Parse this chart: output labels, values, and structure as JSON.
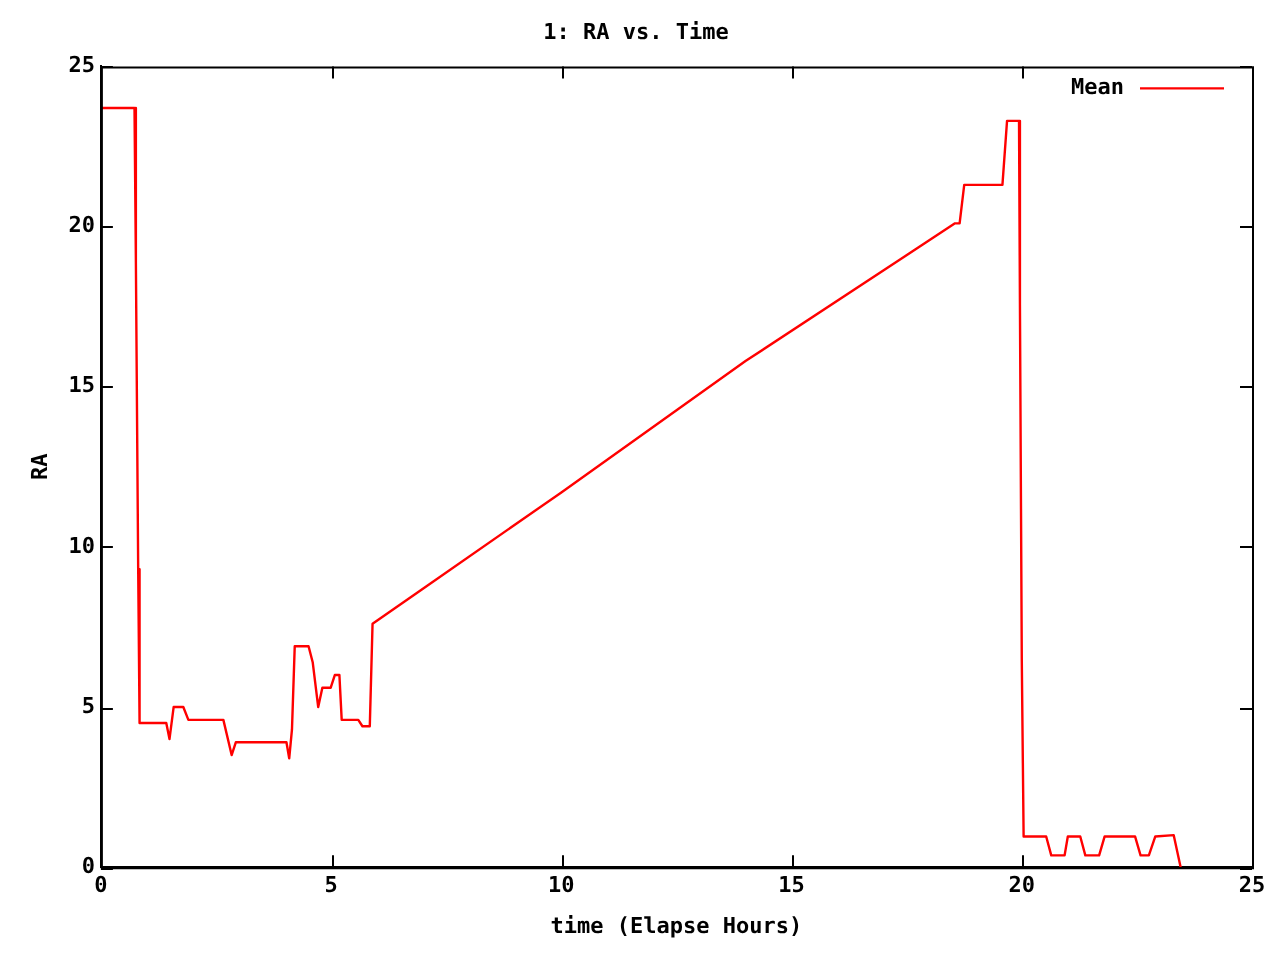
{
  "chart_data": {
    "type": "line",
    "title": "1: RA vs. Time",
    "xlabel": "time (Elapse Hours)",
    "ylabel": "RA",
    "xlim": [
      0,
      25
    ],
    "xticks": [
      0,
      5,
      10,
      15,
      20,
      25
    ],
    "ylim": [
      0,
      25
    ],
    "yticks": [
      0,
      5,
      10,
      15,
      20,
      25
    ],
    "grid": false,
    "legend": "top right",
    "marker": "none",
    "line_style": "solid",
    "series": [
      {
        "name": "Mean",
        "color": "#ff0000",
        "x": [
          0,
          0.73,
          0.76,
          0.81,
          0.84,
          1.42,
          1.49,
          1.58,
          1.79,
          1.9,
          2.66,
          2.84,
          2.93,
          4.03,
          4.09,
          4.15,
          4.21,
          4.51,
          4.6,
          4.72,
          4.81,
          4.99,
          5.08,
          5.18,
          5.23,
          5.59,
          5.68,
          5.84,
          5.9,
          6.9,
          10,
          14,
          18.55,
          18.65,
          18.75,
          19.58,
          19.68,
          19.94,
          19.96,
          20.0,
          20.04,
          20.53,
          20.64,
          20.93,
          21.0,
          21.27,
          21.38,
          21.68,
          21.8,
          22.46,
          22.58,
          22.76,
          22.9,
          23.3,
          23.45
        ],
        "values": [
          23.7,
          23.7,
          18.9,
          9.3,
          4.5,
          4.5,
          4.0,
          5.0,
          5.0,
          4.6,
          4.6,
          3.5,
          3.9,
          3.9,
          3.4,
          4.3,
          6.9,
          6.9,
          6.4,
          5.0,
          5.6,
          5.6,
          6.0,
          6.0,
          4.6,
          4.6,
          4.4,
          4.4,
          7.6,
          8.6,
          11.7,
          15.8,
          20.1,
          20.1,
          21.3,
          21.3,
          23.3,
          23.3,
          17.6,
          6.5,
          0.96,
          0.96,
          0.37,
          0.37,
          0.96,
          0.96,
          0.37,
          0.37,
          0.96,
          0.96,
          0.37,
          0.37,
          0.96,
          1.0,
          0
        ]
      }
    ]
  }
}
